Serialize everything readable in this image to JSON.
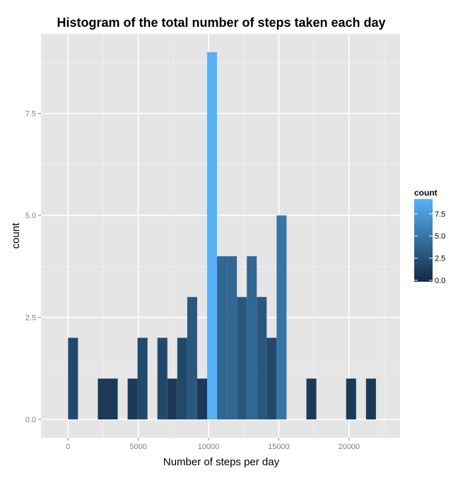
{
  "chart_data": {
    "type": "bar",
    "title": "Histogram of the total number of steps taken each day",
    "xlabel": "Number of steps per day",
    "ylabel": "count",
    "xlim": [
      -1925,
      23635
    ],
    "ylim": [
      -0.45,
      9.45
    ],
    "x_ticks": [
      0,
      5000,
      10000,
      15000,
      20000
    ],
    "x_tick_labels": [
      "0",
      "5000",
      "10000",
      "15000",
      "20000"
    ],
    "y_ticks": [
      0,
      2.5,
      5,
      7.5
    ],
    "y_tick_labels": [
      "0.0",
      "2.5",
      "5.0",
      "7.5"
    ],
    "bin_width": 707,
    "bins": [
      {
        "x0": 0,
        "count": 2
      },
      {
        "x0": 2121,
        "count": 1
      },
      {
        "x0": 2828,
        "count": 1
      },
      {
        "x0": 4242,
        "count": 1
      },
      {
        "x0": 4949,
        "count": 2
      },
      {
        "x0": 6363,
        "count": 2
      },
      {
        "x0": 7070,
        "count": 1
      },
      {
        "x0": 7777,
        "count": 2
      },
      {
        "x0": 8484,
        "count": 3
      },
      {
        "x0": 9191,
        "count": 1
      },
      {
        "x0": 9898,
        "count": 9
      },
      {
        "x0": 10605,
        "count": 4
      },
      {
        "x0": 11312,
        "count": 4
      },
      {
        "x0": 12019,
        "count": 3
      },
      {
        "x0": 12726,
        "count": 4
      },
      {
        "x0": 13433,
        "count": 3
      },
      {
        "x0": 14140,
        "count": 2
      },
      {
        "x0": 14847,
        "count": 5
      },
      {
        "x0": 16968,
        "count": 1
      },
      {
        "x0": 19796,
        "count": 1
      },
      {
        "x0": 21210,
        "count": 1
      }
    ],
    "legend": {
      "title": "count",
      "position": "right",
      "ticks": [
        0,
        2.5,
        5,
        7.5
      ],
      "tick_labels": [
        "0.0",
        "2.5",
        "5.0",
        "7.5"
      ],
      "range": [
        0,
        9
      ]
    },
    "colors": {
      "low": "#132B43",
      "high": "#56B1F7",
      "panel": "#E5E5E5",
      "grid_major": "#FFFFFF",
      "grid_minor": "#F2F2F2",
      "axis_text": "#7F7F7F"
    },
    "grid": true
  }
}
